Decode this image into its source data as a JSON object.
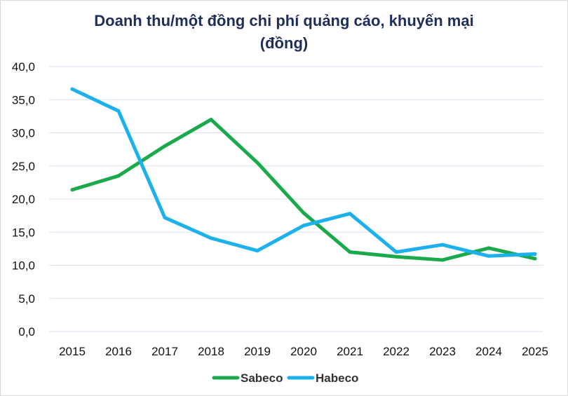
{
  "chart_data": {
    "type": "line",
    "title_line1": "Doanh thu/một đồng chi phí quảng cáo, khuyến mại",
    "title_line2": "(đồng)",
    "xlabel": "",
    "ylabel": "",
    "categories": [
      "2015",
      "2016",
      "2017",
      "2018",
      "2019",
      "2020",
      "2021",
      "2022",
      "2023",
      "2024",
      "2025"
    ],
    "ylim": [
      0,
      40
    ],
    "yticks": [
      "0,0",
      "5,0",
      "10,0",
      "15,0",
      "20,0",
      "25,0",
      "30,0",
      "35,0",
      "40,0"
    ],
    "grid": true,
    "legend_position": "bottom",
    "series": [
      {
        "name": "Sabeco",
        "color": "#1aaa4b",
        "values": [
          21.4,
          23.5,
          28.0,
          32.0,
          25.5,
          17.9,
          12.0,
          11.3,
          10.8,
          12.6,
          11.0
        ]
      },
      {
        "name": "Habeco",
        "color": "#1cb0ec",
        "values": [
          36.6,
          33.3,
          17.2,
          14.1,
          12.2,
          16.0,
          17.8,
          12.0,
          13.1,
          11.4,
          11.7
        ]
      }
    ]
  }
}
